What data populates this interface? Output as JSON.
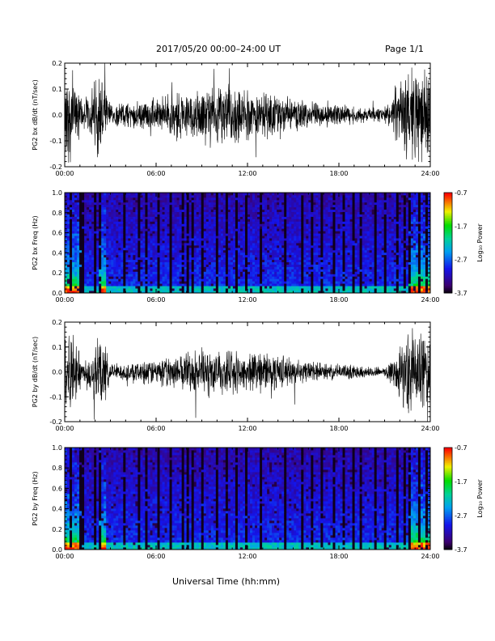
{
  "header": {
    "title": "2017/05/20  00:00–24:00 UT",
    "page": "Page 1/1"
  },
  "footer": {
    "xlabel": "Universal Time (hh:mm)"
  },
  "chart_data": [
    {
      "type": "line",
      "ylabel": "PG2 bx dB/dt (nT/sec)",
      "xticks": [
        "00:00",
        "06:00",
        "12:00",
        "18:00",
        "24:00"
      ],
      "yticks": [
        "-0.2",
        "-0.1",
        "0.0",
        "0.1",
        "0.2"
      ],
      "xlim": [
        0,
        24
      ],
      "ylim": [
        -0.2,
        0.2
      ],
      "series": [
        {
          "x": [
            0,
            0.5,
            1.2,
            2.4,
            3,
            5,
            7.5,
            9,
            10.5,
            12,
            13.5,
            15,
            17,
            19,
            21,
            22.5,
            23.2,
            24
          ],
          "amplitude": [
            0.2,
            0.2,
            0.06,
            0.2,
            0.05,
            0.06,
            0.1,
            0.12,
            0.13,
            0.11,
            0.1,
            0.07,
            0.05,
            0.04,
            0.03,
            0.2,
            0.2,
            0.2
          ]
        }
      ]
    },
    {
      "type": "heatmap",
      "ylabel": "PG2 bx Freq (Hz)",
      "xticks": [
        "00:00",
        "06:00",
        "12:00",
        "18:00",
        "24:00"
      ],
      "yticks": [
        "0.0",
        "0.2",
        "0.4",
        "0.6",
        "0.8",
        "1.0"
      ],
      "xlim": [
        0,
        24
      ],
      "ylim": [
        0,
        1.0
      ],
      "colorbar": {
        "label": "Log₁₀ Power",
        "ticks": [
          "-0.7",
          "-1.7",
          "-2.7",
          "-3.7"
        ],
        "range": [
          -3.7,
          -0.7
        ]
      }
    },
    {
      "type": "line",
      "ylabel": "PG2 by dB/dt (nT/sec)",
      "xticks": [
        "00:00",
        "06:00",
        "12:00",
        "18:00",
        "24:00"
      ],
      "yticks": [
        "-0.2",
        "-0.1",
        "0.0",
        "0.1",
        "0.2"
      ],
      "xlim": [
        0,
        24
      ],
      "ylim": [
        -0.2,
        0.2
      ],
      "series": [
        {
          "x": [
            0,
            0.5,
            1.2,
            2.4,
            3,
            5,
            7.5,
            9,
            10.5,
            12,
            13.5,
            15,
            17,
            19,
            21,
            22.5,
            23.2,
            24
          ],
          "amplitude": [
            0.2,
            0.2,
            0.05,
            0.2,
            0.04,
            0.05,
            0.08,
            0.11,
            0.1,
            0.09,
            0.1,
            0.06,
            0.04,
            0.03,
            0.02,
            0.2,
            0.2,
            0.2
          ]
        }
      ]
    },
    {
      "type": "heatmap",
      "ylabel": "PG2 by Freq (Hz)",
      "xticks": [
        "00:00",
        "06:00",
        "12:00",
        "18:00",
        "24:00"
      ],
      "yticks": [
        "0.0",
        "0.2",
        "0.4",
        "0.6",
        "0.8",
        "1.0"
      ],
      "xlim": [
        0,
        24
      ],
      "ylim": [
        0,
        1.0
      ],
      "colorbar": {
        "label": "Log₁₀ Power",
        "ticks": [
          "-0.7",
          "-1.7",
          "-2.7",
          "-3.7"
        ],
        "range": [
          -3.7,
          -0.7
        ]
      }
    }
  ]
}
